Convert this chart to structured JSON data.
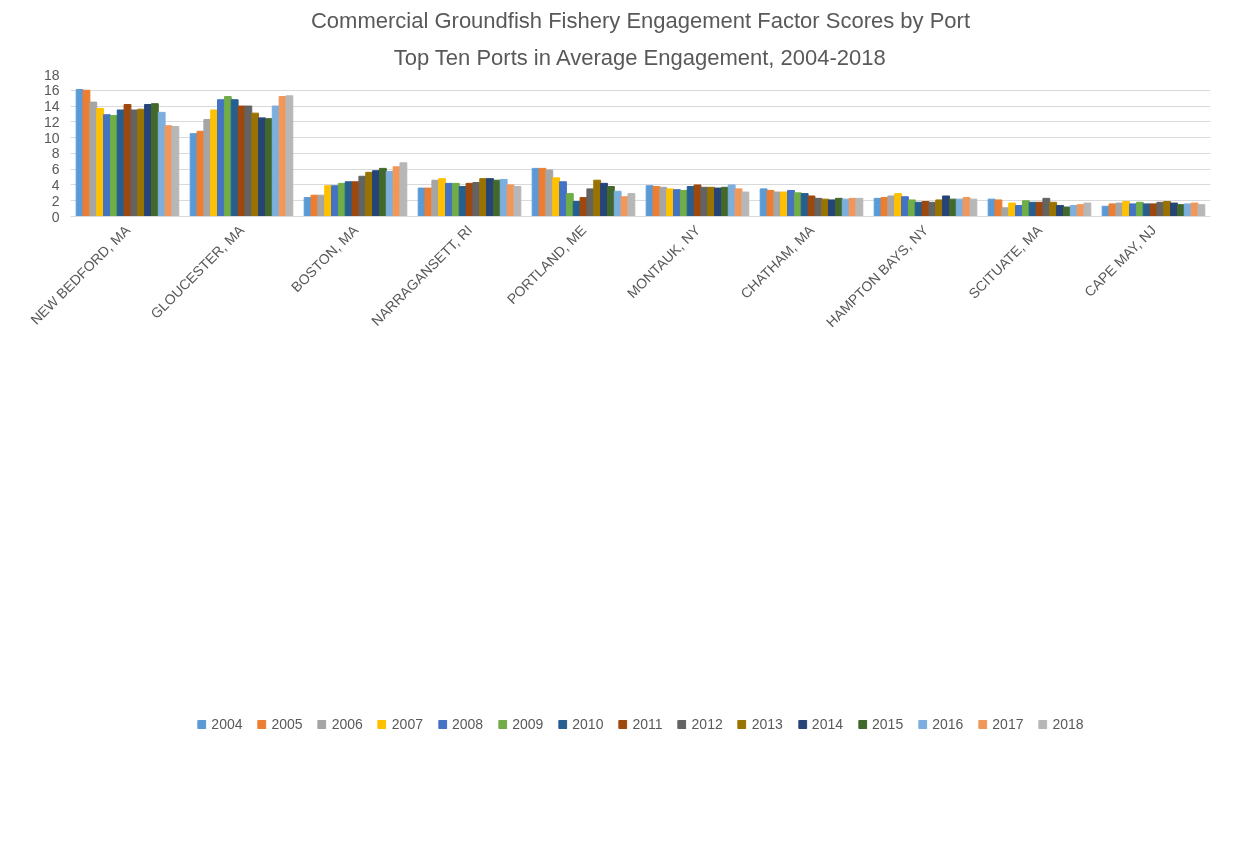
{
  "chart_data": {
    "type": "bar",
    "title": "Commercial Groundfish Fishery Engagement Factor Scores by Port",
    "subtitle": "Top Ten Ports in Average Engagement, 2004-2018",
    "categories": [
      "NEW BEDFORD, MA",
      "GLOUCESTER, MA",
      "BOSTON, MA",
      "NARRAGANSETT, RI",
      "PORTLAND, ME",
      "MONTAUK, NY",
      "CHATHAM, MA",
      "HAMPTON BAYS, NY",
      "SCITUATE, MA",
      "CAPE MAY, NJ"
    ],
    "ylim": [
      0,
      18
    ],
    "yticks": [
      0,
      2,
      4,
      6,
      8,
      10,
      12,
      14,
      16,
      18
    ],
    "grid": "y",
    "legend": "bottom",
    "series": [
      {
        "name": "2004",
        "color": "#5b9bd5",
        "values": [
          16.1,
          10.5,
          2.4,
          3.6,
          6.1,
          3.9,
          3.5,
          2.3,
          2.2,
          1.3
        ]
      },
      {
        "name": "2005",
        "color": "#ed7d31",
        "values": [
          16.0,
          10.8,
          2.7,
          3.6,
          6.1,
          3.8,
          3.3,
          2.4,
          2.1,
          1.6
        ]
      },
      {
        "name": "2006",
        "color": "#a5a5a5",
        "values": [
          14.5,
          12.3,
          2.7,
          4.6,
          5.9,
          3.7,
          3.1,
          2.6,
          1.1,
          1.7
        ]
      },
      {
        "name": "2007",
        "color": "#ffc000",
        "values": [
          13.7,
          13.5,
          3.9,
          4.8,
          4.9,
          3.5,
          3.1,
          2.9,
          1.7,
          1.9
        ]
      },
      {
        "name": "2008",
        "color": "#4472c4",
        "values": [
          12.9,
          14.8,
          3.9,
          4.2,
          4.4,
          3.4,
          3.3,
          2.5,
          1.4,
          1.6
        ]
      },
      {
        "name": "2009",
        "color": "#70ad47",
        "values": [
          12.8,
          15.2,
          4.2,
          4.2,
          2.9,
          3.3,
          3.0,
          2.1,
          2.0,
          1.8
        ]
      },
      {
        "name": "2010",
        "color": "#255e91",
        "values": [
          13.5,
          14.8,
          4.4,
          3.8,
          1.9,
          3.8,
          2.9,
          1.8,
          1.8,
          1.6
        ]
      },
      {
        "name": "2011",
        "color": "#9e480e",
        "values": [
          14.2,
          14.0,
          4.4,
          4.2,
          2.4,
          4.0,
          2.6,
          1.9,
          1.8,
          1.6
        ]
      },
      {
        "name": "2012",
        "color": "#636363",
        "values": [
          13.5,
          14.0,
          5.1,
          4.3,
          3.5,
          3.7,
          2.3,
          1.8,
          2.3,
          1.8
        ]
      },
      {
        "name": "2013",
        "color": "#997300",
        "values": [
          13.6,
          13.1,
          5.6,
          4.8,
          4.6,
          3.7,
          2.2,
          2.1,
          1.8,
          1.9
        ]
      },
      {
        "name": "2014",
        "color": "#264478",
        "values": [
          14.2,
          12.5,
          5.8,
          4.8,
          4.2,
          3.6,
          2.1,
          2.6,
          1.4,
          1.7
        ]
      },
      {
        "name": "2015",
        "color": "#43682b",
        "values": [
          14.3,
          12.4,
          6.1,
          4.6,
          3.8,
          3.7,
          2.3,
          2.2,
          1.2,
          1.5
        ]
      },
      {
        "name": "2016",
        "color": "#7cafdd",
        "values": [
          13.2,
          14.0,
          5.7,
          4.7,
          3.2,
          4.0,
          2.2,
          2.2,
          1.4,
          1.6
        ]
      },
      {
        "name": "2017",
        "color": "#f1975a",
        "values": [
          11.5,
          15.2,
          6.3,
          4.0,
          2.5,
          3.5,
          2.3,
          2.4,
          1.5,
          1.7
        ]
      },
      {
        "name": "2018",
        "color": "#b7b7b7",
        "values": [
          11.4,
          15.3,
          6.8,
          3.8,
          2.9,
          3.1,
          2.3,
          2.2,
          1.7,
          1.5
        ]
      }
    ]
  }
}
